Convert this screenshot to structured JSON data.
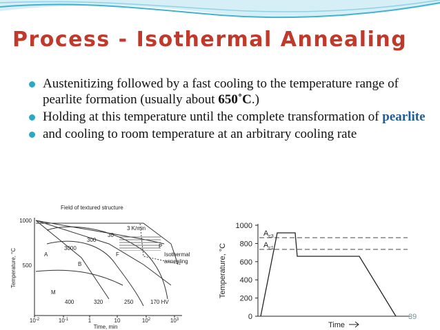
{
  "title": "Process - Isothermal Annealing",
  "bullets": [
    [
      "Austenitizing followed by a fast cooling to the temperature range of pearlite formation (usually about ",
      "650˚C",
      ".)"
    ],
    [
      "Holding at this temperature until the complete transformation of ",
      "pearlite"
    ],
    [
      "and cooling to room temperature at an arbitrary cooling rate"
    ]
  ],
  "left_figure": {
    "header": "Field of textured structure",
    "y_axis_label": "Temperature, °C",
    "x_axis_label": "Time, min",
    "y_ticks": [
      "1000",
      "500"
    ],
    "x_ticks": [
      {
        "base": "10",
        "exp": "-2"
      },
      {
        "base": "10",
        "exp": "-1"
      },
      {
        "base": "1",
        "exp": ""
      },
      {
        "base": "10",
        "exp": ""
      },
      {
        "base": "10",
        "exp": "2"
      },
      {
        "base": "10",
        "exp": "3"
      }
    ],
    "cooling_rates": [
      "3 K/min",
      "30",
      "300",
      "3000"
    ],
    "phases": [
      "A",
      "B",
      "F",
      "P",
      "M"
    ],
    "annotation": [
      "Isothermal",
      "annealing"
    ],
    "hardness": [
      "400",
      "320",
      "250",
      "170 HV"
    ]
  },
  "right_figure": {
    "y_axis_label": "Temperature, °C",
    "x_axis_label": "Time",
    "y_ticks": [
      "1000",
      "800",
      "600",
      "400",
      "200",
      "0"
    ],
    "lines": [
      {
        "base": "A",
        "sub": "c3"
      },
      {
        "base": "A",
        "sub": "c1"
      }
    ]
  },
  "page_number": "39"
}
